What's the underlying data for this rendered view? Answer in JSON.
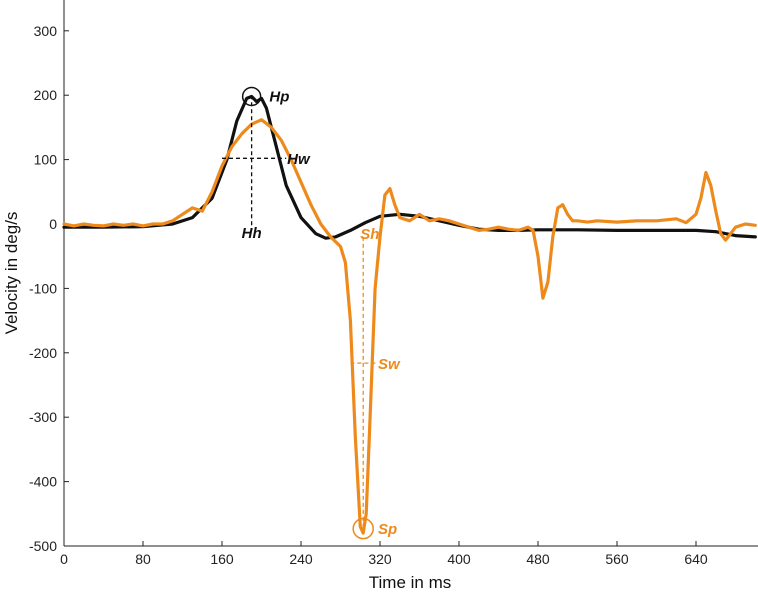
{
  "chart_data": {
    "type": "line",
    "title": "",
    "xlabel": "Time in ms",
    "ylabel": "Velocity in deg/s",
    "xlim": [
      0,
      700
    ],
    "ylim": [
      -500,
      350
    ],
    "xticks": [
      0,
      80,
      160,
      240,
      320,
      400,
      480,
      560,
      640
    ],
    "yticks": [
      -500,
      -400,
      -300,
      -200,
      -100,
      0,
      100,
      200,
      300
    ],
    "grid": false,
    "series": [
      {
        "color": "#111111",
        "x": [
          0,
          40,
          80,
          110,
          130,
          150,
          165,
          175,
          185,
          190,
          195,
          200,
          205,
          215,
          225,
          240,
          255,
          265,
          275,
          290,
          305,
          320,
          340,
          360,
          380,
          400,
          420,
          440,
          460,
          480,
          520,
          560,
          600,
          640,
          660,
          680,
          700
        ],
        "y": [
          -5,
          -5,
          -4,
          0,
          10,
          40,
          100,
          160,
          195,
          198,
          190,
          195,
          180,
          120,
          60,
          10,
          -15,
          -22,
          -20,
          -10,
          2,
          12,
          15,
          12,
          5,
          -2,
          -8,
          -10,
          -10,
          -9,
          -9,
          -10,
          -10,
          -10,
          -12,
          -18,
          -20
        ]
      },
      {
        "color": "#EE8A1C",
        "x": [
          0,
          10,
          20,
          30,
          40,
          50,
          60,
          70,
          80,
          90,
          100,
          110,
          120,
          130,
          140,
          150,
          160,
          170,
          180,
          190,
          200,
          210,
          220,
          230,
          240,
          250,
          260,
          270,
          280,
          285,
          290,
          295,
          300,
          303,
          306,
          310,
          315,
          320,
          325,
          330,
          335,
          340,
          350,
          360,
          370,
          380,
          390,
          400,
          410,
          420,
          430,
          440,
          450,
          460,
          470,
          475,
          480,
          485,
          490,
          495,
          500,
          505,
          510,
          515,
          520,
          530,
          540,
          560,
          580,
          600,
          620,
          630,
          640,
          645,
          650,
          655,
          660,
          665,
          670,
          675,
          680,
          690,
          700
        ],
        "y": [
          0,
          -3,
          0,
          -2,
          -3,
          0,
          -2,
          0,
          -3,
          0,
          0,
          5,
          15,
          25,
          20,
          50,
          90,
          120,
          140,
          155,
          162,
          150,
          130,
          100,
          65,
          30,
          0,
          -20,
          -35,
          -60,
          -150,
          -330,
          -470,
          -480,
          -450,
          -300,
          -100,
          -20,
          45,
          55,
          30,
          10,
          5,
          15,
          5,
          8,
          5,
          0,
          -5,
          -10,
          -8,
          -5,
          -8,
          -10,
          -5,
          -10,
          -50,
          -115,
          -90,
          -20,
          25,
          30,
          15,
          5,
          5,
          3,
          5,
          3,
          5,
          5,
          8,
          2,
          15,
          40,
          80,
          60,
          20,
          -15,
          -25,
          -15,
          -5,
          0,
          -2
        ]
      }
    ],
    "annotations": [
      {
        "text": "Hp",
        "color": "#111111"
      },
      {
        "text": "Hw",
        "color": "#111111"
      },
      {
        "text": "Hh",
        "color": "#111111"
      },
      {
        "text": "Sh",
        "color": "#EE8A1C"
      },
      {
        "text": "Sw",
        "color": "#EE8A1C"
      },
      {
        "text": "Sp",
        "color": "#EE8A1C"
      }
    ]
  }
}
